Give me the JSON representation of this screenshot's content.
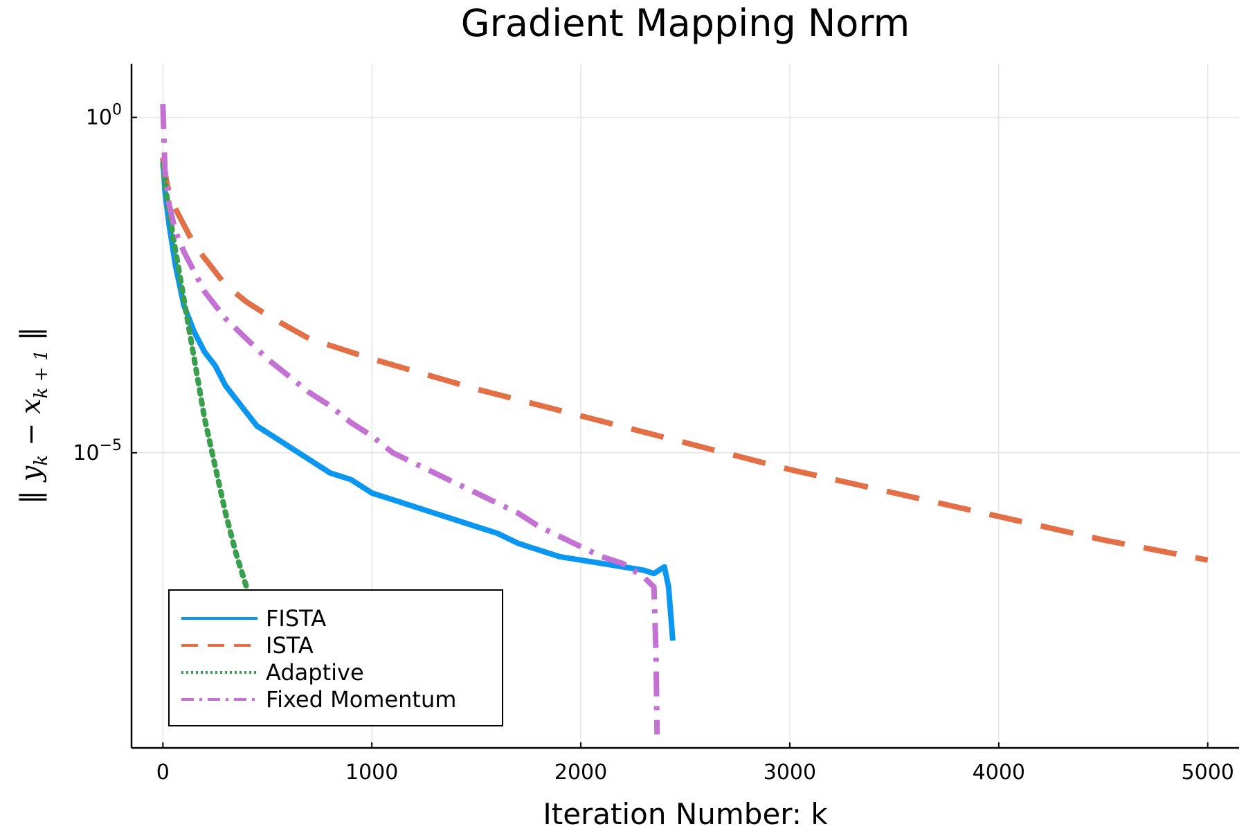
{
  "chart_data": {
    "type": "line",
    "title": "Gradient Mapping Norm",
    "xlabel": "Iteration Number: k",
    "ylabel": "‖ y_k − x_{k+1} ‖",
    "ylabel_parts": {
      "open": "‖ y",
      "sub1": "k",
      "minus": " − x",
      "sub2": "k + 1",
      "close": " ‖"
    },
    "xlim": [
      -150,
      5150
    ],
    "ylim_log10": [
      -9.4,
      0.8
    ],
    "y_scale": "log",
    "grid": true,
    "legend_position": "bottom-left",
    "x_ticks": [
      0,
      1000,
      2000,
      3000,
      4000,
      5000
    ],
    "x_tick_labels": [
      "0",
      "1000",
      "2000",
      "3000",
      "4000",
      "5000"
    ],
    "y_ticks": [
      {
        "log10": 0,
        "base": "10",
        "exp": "0"
      },
      {
        "log10": -5,
        "base": "10",
        "exp": "−5"
      }
    ],
    "series": [
      {
        "name": "FISTA",
        "color": "#0b96f0",
        "dash": "solid",
        "x": [
          0,
          10,
          30,
          60,
          100,
          150,
          200,
          250,
          300,
          350,
          400,
          450,
          500,
          550,
          600,
          700,
          800,
          900,
          1000,
          1100,
          1200,
          1300,
          1400,
          1500,
          1600,
          1700,
          1800,
          1900,
          2000,
          2100,
          2200,
          2300,
          2350,
          2400,
          2420,
          2435,
          2440
        ],
        "y": [
          -0.6,
          -1.1,
          -1.6,
          -2.2,
          -2.8,
          -3.2,
          -3.5,
          -3.7,
          -4.0,
          -4.2,
          -4.4,
          -4.6,
          -4.7,
          -4.8,
          -4.9,
          -5.1,
          -5.3,
          -5.4,
          -5.6,
          -5.7,
          -5.8,
          -5.9,
          -6.0,
          -6.1,
          -6.2,
          -6.35,
          -6.45,
          -6.55,
          -6.6,
          -6.65,
          -6.7,
          -6.75,
          -6.8,
          -6.7,
          -7.0,
          -7.6,
          -7.8
        ]
      },
      {
        "name": "ISTA",
        "color": "#e26f46",
        "dash": "long-dash",
        "x": [
          0,
          20,
          50,
          100,
          150,
          200,
          300,
          400,
          500,
          700,
          1000,
          1500,
          2000,
          2500,
          3000,
          3500,
          4000,
          4500,
          5000
        ],
        "y": [
          -0.6,
          -1.0,
          -1.3,
          -1.6,
          -1.9,
          -2.1,
          -2.5,
          -2.75,
          -2.95,
          -3.3,
          -3.6,
          -4.05,
          -4.45,
          -4.85,
          -5.25,
          -5.6,
          -5.95,
          -6.3,
          -6.6
        ]
      },
      {
        "name": "Adaptive",
        "color": "#3a9e4f",
        "dash": "dotted",
        "x": [
          0,
          20,
          50,
          100,
          150,
          200,
          250,
          300,
          350,
          400,
          430
        ],
        "y": [
          -0.7,
          -1.2,
          -1.8,
          -2.7,
          -3.6,
          -4.5,
          -5.2,
          -5.9,
          -6.5,
          -7.0,
          -7.4
        ]
      },
      {
        "name": "Fixed Momentum",
        "color": "#c471d4",
        "dash": "dash-dot",
        "x": [
          0,
          10,
          30,
          60,
          100,
          150,
          200,
          300,
          400,
          500,
          600,
          700,
          800,
          900,
          1000,
          1100,
          1200,
          1300,
          1400,
          1500,
          1600,
          1700,
          1800,
          1900,
          2000,
          2100,
          2200,
          2300,
          2350,
          2360,
          2365
        ],
        "y": [
          0.2,
          -0.8,
          -1.3,
          -1.7,
          -2.0,
          -2.3,
          -2.6,
          -3.0,
          -3.3,
          -3.6,
          -3.85,
          -4.1,
          -4.3,
          -4.55,
          -4.75,
          -5.0,
          -5.15,
          -5.3,
          -5.45,
          -5.6,
          -5.75,
          -5.9,
          -6.1,
          -6.25,
          -6.4,
          -6.55,
          -6.65,
          -6.85,
          -7.0,
          -8.0,
          -9.2
        ]
      }
    ]
  }
}
